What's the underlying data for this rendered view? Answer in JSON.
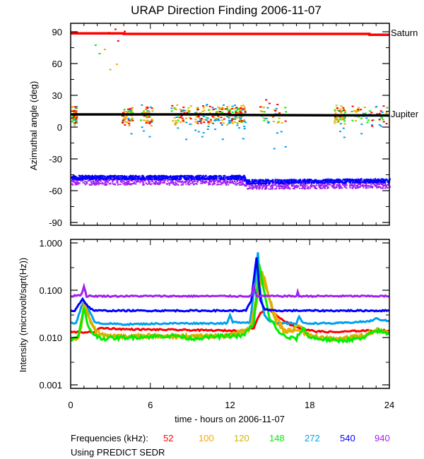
{
  "chart_data": [
    {
      "type": "scatter",
      "title": "URAP Direction Finding  2006-11-07",
      "xlabel": "time - hours on 2006-11-07",
      "ylabel": "Azimuthal angle (deg)",
      "xlim": [
        0,
        24
      ],
      "ylim": [
        -90,
        95
      ],
      "xticks": [
        "0",
        "6",
        "12",
        "18",
        "24"
      ],
      "yticks": [
        "90",
        "60",
        "30",
        "0",
        "-30",
        "-60",
        "-90"
      ],
      "ytick_values": [
        90,
        60,
        30,
        0,
        -30,
        -60,
        -90
      ],
      "annotations": [
        {
          "text": "Saturn",
          "y": 88
        },
        {
          "text": "Jupiter",
          "y": 12
        }
      ],
      "reference_lines": [
        {
          "name": "Saturn",
          "color": "#ff0000",
          "points": [
            [
              0,
              88.5
            ],
            [
              4,
              88.5
            ],
            [
              4,
              88
            ],
            [
              22.5,
              88
            ],
            [
              22.5,
              87.2
            ],
            [
              24,
              87.2
            ]
          ]
        },
        {
          "name": "Jupiter",
          "color": "#000000",
          "points": [
            [
              0,
              12
            ],
            [
              12,
              12
            ],
            [
              12,
              11.5
            ],
            [
              24,
              11
            ]
          ]
        }
      ],
      "series": [
        {
          "name": "940",
          "color": "#a020f0",
          "band": [
            [
              0,
              -50
            ],
            [
              13,
              -50
            ],
            [
              13.2,
              -54
            ],
            [
              24,
              -53
            ]
          ],
          "spread": 4
        },
        {
          "name": "540",
          "color": "#0000ff",
          "band": [
            [
              0,
              -47
            ],
            [
              13,
              -47
            ],
            [
              13.2,
              -51
            ],
            [
              24,
              -50
            ]
          ],
          "spread": 2
        },
        {
          "name": "148",
          "color": "#00ee00",
          "cluster_center": 12,
          "spread": 6
        },
        {
          "name": "120",
          "color": "#cdb500",
          "cluster_center": 12,
          "spread": 8
        },
        {
          "name": "100",
          "color": "#ffa500",
          "cluster_center": 13,
          "spread": 8
        },
        {
          "name": "272",
          "color": "#00a0ee",
          "cluster_center": 6,
          "spread": 10
        },
        {
          "name": "52",
          "color": "#ff0000",
          "cluster_center": 16,
          "spread": 8
        }
      ]
    },
    {
      "type": "line",
      "title": "",
      "xlabel": "time - hours on 2006-11-07",
      "ylabel": "Intensity (microvolt/sqrt(Hz))",
      "xlim": [
        0,
        24
      ],
      "ylim": [
        0.001,
        1.0
      ],
      "yscale": "log",
      "xticks": [
        "0",
        "6",
        "12",
        "18",
        "24"
      ],
      "xtick_values": [
        0,
        6,
        12,
        18,
        24
      ],
      "yticks": [
        "1.000",
        "0.100",
        "0.010",
        "0.001"
      ],
      "ytick_values": [
        1.0,
        0.1,
        0.01,
        0.001
      ],
      "series": [
        {
          "name": "940",
          "color": "#a020f0",
          "x": [
            0,
            0.8,
            1.0,
            1.2,
            13.6,
            13.8,
            14.0,
            17.0,
            17.1,
            17.2,
            24
          ],
          "y": [
            0.075,
            0.08,
            0.12,
            0.075,
            0.075,
            0.12,
            0.075,
            0.075,
            0.09,
            0.075,
            0.075
          ]
        },
        {
          "name": "540",
          "color": "#0000ff",
          "x": [
            0,
            0.3,
            0.6,
            0.9,
            1.3,
            1.8,
            13.2,
            13.6,
            14.0,
            14.3,
            14.6,
            15.0,
            24
          ],
          "y": [
            0.037,
            0.037,
            0.05,
            0.065,
            0.045,
            0.037,
            0.037,
            0.06,
            0.5,
            0.06,
            0.04,
            0.037,
            0.037
          ]
        },
        {
          "name": "272",
          "color": "#00a0ee",
          "x": [
            0,
            0.4,
            0.8,
            1.0,
            1.3,
            1.8,
            2.2,
            4,
            8,
            11.8,
            12.0,
            12.2,
            13.5,
            13.9,
            14.1,
            14.3,
            14.6,
            15.0,
            15.5,
            17.0,
            17.2,
            17.5,
            20,
            22.5,
            23,
            24
          ],
          "y": [
            0.02,
            0.02,
            0.045,
            0.06,
            0.04,
            0.022,
            0.02,
            0.019,
            0.02,
            0.02,
            0.03,
            0.021,
            0.021,
            0.15,
            0.65,
            0.08,
            0.03,
            0.022,
            0.02,
            0.02,
            0.028,
            0.02,
            0.02,
            0.022,
            0.025,
            0.022
          ]
        },
        {
          "name": "148",
          "color": "#00ee00",
          "x": [
            0,
            0.5,
            0.8,
            1.0,
            1.3,
            1.8,
            2.5,
            4,
            6,
            8,
            9,
            11,
            13,
            13.8,
            14.2,
            14.6,
            15.0,
            15.6,
            16.2,
            17.0,
            17.5,
            18,
            20,
            21,
            22,
            23,
            24
          ],
          "y": [
            0.0095,
            0.0095,
            0.02,
            0.04,
            0.018,
            0.011,
            0.0095,
            0.01,
            0.0105,
            0.011,
            0.0095,
            0.0105,
            0.011,
            0.02,
            0.35,
            0.08,
            0.025,
            0.014,
            0.01,
            0.0095,
            0.016,
            0.01,
            0.0085,
            0.009,
            0.0095,
            0.014,
            0.012
          ]
        },
        {
          "name": "120",
          "color": "#cdb500",
          "x": [
            0,
            0.5,
            0.8,
            1.0,
            1.4,
            2.0,
            3,
            6,
            9,
            12,
            13.5,
            14.0,
            14.4,
            14.9,
            15.5,
            16.2,
            17.2,
            18,
            20,
            22,
            23,
            24
          ],
          "y": [
            0.0095,
            0.0095,
            0.015,
            0.06,
            0.025,
            0.012,
            0.0105,
            0.011,
            0.0105,
            0.011,
            0.016,
            0.05,
            0.25,
            0.07,
            0.02,
            0.012,
            0.018,
            0.011,
            0.009,
            0.011,
            0.015,
            0.013
          ]
        },
        {
          "name": "100",
          "color": "#ffa500",
          "x": [
            0,
            0.6,
            1.0,
            1.3,
            1.8,
            2.5,
            4,
            8,
            12,
            13.5,
            14.1,
            14.6,
            15.2,
            16,
            17,
            18,
            20,
            22,
            23,
            24
          ],
          "y": [
            0.0095,
            0.01,
            0.05,
            0.03,
            0.014,
            0.011,
            0.0105,
            0.0105,
            0.011,
            0.015,
            0.1,
            0.18,
            0.04,
            0.015,
            0.014,
            0.011,
            0.009,
            0.011,
            0.014,
            0.013
          ]
        },
        {
          "name": "52",
          "color": "#ff0000",
          "x": [
            0,
            1.8,
            2.2,
            4,
            8,
            12,
            13,
            13.8,
            14.2,
            14.6,
            15.0,
            15.6,
            16.5,
            17.5,
            18.5,
            20,
            22,
            24
          ],
          "y": [
            0.013,
            0.013,
            0.016,
            0.015,
            0.0145,
            0.014,
            0.014,
            0.016,
            0.03,
            0.04,
            0.038,
            0.028,
            0.019,
            0.015,
            0.0135,
            0.013,
            0.014,
            0.014
          ]
        }
      ]
    }
  ],
  "legend": {
    "label": "Frequencies (kHz):",
    "items": [
      {
        "text": "52",
        "color": "#ff0000"
      },
      {
        "text": "100",
        "color": "#ffa500"
      },
      {
        "text": "120",
        "color": "#cdb500"
      },
      {
        "text": "148",
        "color": "#00ee00"
      },
      {
        "text": "272",
        "color": "#00a0ee"
      },
      {
        "text": "540",
        "color": "#0000ff"
      },
      {
        "text": "940",
        "color": "#a020f0"
      }
    ]
  },
  "footnote": "Using PREDICT SEDR"
}
